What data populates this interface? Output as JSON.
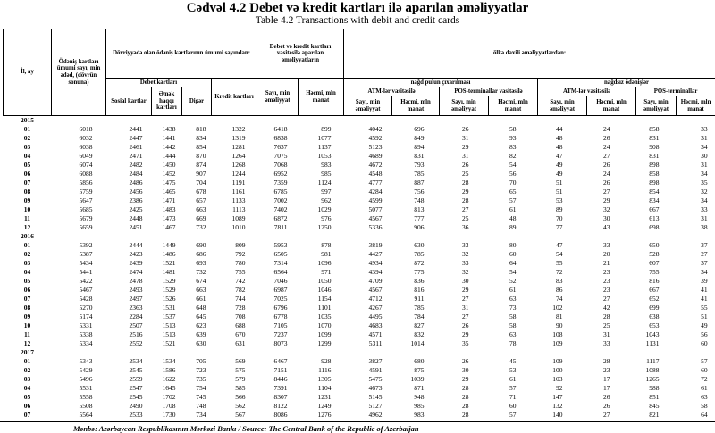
{
  "title": "Cədvəl 4.2 Debet və kredit kartları ilə aparılan əməliyyatlar",
  "subtitle": "Table 4.2 Transactions with debit and credit cards",
  "source": "Mənbə: Azərbaycan Respublikasının Mərkəzi Bankı / Source: The Central Bank of the Republic of Azerbaijan",
  "header": {
    "il_ay": "İl, ay",
    "total_cards": "Ödəniş kartları ümumi sayı, min ədəd, (dövrün sonuna)",
    "circulation": "Dövriyyədə olan ödəniş kartlarının ümumi sayından:",
    "debit_cards": "Debet kartları",
    "social_cards": "Sosial kartlar",
    "salary_cards": "Əmək haqqı kartları",
    "other": "Digər",
    "credit_cards": "Kredit kartları",
    "dc_operations": "Debet və kredit  kartları vasitəsilə aparılan əməliyyatların",
    "count": "Sayı, min əməliyyat",
    "volume": "Həcmi, mln manat",
    "domestic": "ölkə daxili əməliyyatlardan:",
    "cash_withdrawal": "nağd pulun çıxarılması",
    "cashless_payments": "nağdsız ödənişlər",
    "via_atm": "ATM-lər vasitəsilə",
    "via_pos": "POS-terminallar vasitəsilə",
    "pos_terminals": "POS-terminallar"
  },
  "chart_data": {
    "type": "table",
    "title": "Cədvəl 4.2 Debet və kredit kartları ilə aparılan əməliyyatlar / Table 4.2 Transactions with debit and credit cards",
    "columns": [
      "İl, ay",
      "Ödəniş kartları ümumi sayı",
      "Sosial kartlar",
      "Əmək haqqı kartları",
      "Digər",
      "Kredit kartları",
      "Əməliyyat sayı",
      "Həcmi mln manat",
      "Nağd ATM sayı",
      "Nağd ATM həcmi",
      "Nağd POS sayı",
      "Nağd POS həcmi",
      "Nağdsız ATM sayı",
      "Nağdsız ATM həcmi",
      "Nağdsız POS sayı",
      "Nağdsız POS həcmi"
    ]
  },
  "sections": [
    {
      "year": "2015",
      "rows": [
        {
          "month": "01",
          "values": [
            6018,
            2441,
            1438,
            818,
            1322,
            6418,
            899,
            4042,
            696,
            26,
            58,
            44,
            24,
            858,
            33
          ]
        },
        {
          "month": "02",
          "values": [
            6032,
            2447,
            1441,
            834,
            1319,
            6838,
            1077,
            4592,
            849,
            31,
            93,
            48,
            26,
            831,
            31
          ]
        },
        {
          "month": "03",
          "values": [
            6038,
            2461,
            1442,
            854,
            1281,
            7637,
            1137,
            5123,
            894,
            29,
            83,
            48,
            24,
            908,
            34
          ]
        },
        {
          "month": "04",
          "values": [
            6049,
            2471,
            1444,
            870,
            1264,
            7075,
            1053,
            4689,
            831,
            31,
            82,
            47,
            27,
            831,
            30
          ]
        },
        {
          "month": "05",
          "values": [
            6074,
            2482,
            1450,
            874,
            1268,
            7068,
            983,
            4672,
            793,
            26,
            54,
            49,
            26,
            898,
            31
          ]
        },
        {
          "month": "06",
          "values": [
            6088,
            2484,
            1452,
            907,
            1244,
            6952,
            985,
            4548,
            785,
            25,
            56,
            49,
            24,
            858,
            34
          ]
        },
        {
          "month": "07",
          "values": [
            5856,
            2486,
            1475,
            704,
            1191,
            7359,
            1124,
            4777,
            887,
            28,
            70,
            51,
            26,
            898,
            35
          ]
        },
        {
          "month": "08",
          "values": [
            5759,
            2456,
            1465,
            678,
            1161,
            6785,
            997,
            4284,
            756,
            29,
            65,
            51,
            27,
            854,
            32
          ]
        },
        {
          "month": "09",
          "values": [
            5647,
            2386,
            1471,
            657,
            1133,
            7002,
            962,
            4599,
            748,
            28,
            57,
            53,
            29,
            834,
            34
          ]
        },
        {
          "month": "10",
          "values": [
            5685,
            2425,
            1483,
            663,
            1113,
            7402,
            1029,
            5077,
            813,
            27,
            61,
            89,
            32,
            667,
            33
          ]
        },
        {
          "month": "11",
          "values": [
            5679,
            2448,
            1473,
            669,
            1089,
            6872,
            976,
            4567,
            777,
            25,
            48,
            70,
            30,
            613,
            31
          ]
        },
        {
          "month": "12",
          "values": [
            5659,
            2451,
            1467,
            732,
            1010,
            7811,
            1250,
            5336,
            906,
            36,
            89,
            77,
            43,
            698,
            38
          ]
        }
      ]
    },
    {
      "year": "2016",
      "rows": [
        {
          "month": "01",
          "values": [
            5392,
            2444,
            1449,
            690,
            809,
            5953,
            878,
            3819,
            630,
            33,
            80,
            47,
            33,
            650,
            37
          ]
        },
        {
          "month": "02",
          "values": [
            5387,
            2423,
            1486,
            686,
            792,
            6505,
            981,
            4427,
            785,
            32,
            60,
            54,
            20,
            528,
            27
          ]
        },
        {
          "month": "03",
          "values": [
            5434,
            2439,
            1521,
            693,
            780,
            7314,
            1096,
            4934,
            872,
            33,
            64,
            55,
            21,
            607,
            37
          ]
        },
        {
          "month": "04",
          "values": [
            5441,
            2474,
            1481,
            732,
            755,
            6564,
            971,
            4394,
            775,
            32,
            54,
            72,
            23,
            755,
            34
          ]
        },
        {
          "month": "05",
          "values": [
            5422,
            2478,
            1529,
            674,
            742,
            7046,
            1050,
            4709,
            836,
            30,
            52,
            83,
            23,
            816,
            39
          ]
        },
        {
          "month": "06",
          "values": [
            5467,
            2493,
            1529,
            663,
            782,
            6987,
            1046,
            4567,
            816,
            29,
            61,
            86,
            23,
            667,
            41
          ]
        },
        {
          "month": "07",
          "values": [
            5428,
            2497,
            1526,
            661,
            744,
            7025,
            1154,
            4712,
            911,
            27,
            63,
            74,
            27,
            652,
            41
          ]
        },
        {
          "month": "08",
          "values": [
            5270,
            2363,
            1531,
            648,
            728,
            6796,
            1101,
            4267,
            785,
            31,
            73,
            102,
            42,
            699,
            55
          ]
        },
        {
          "month": "09",
          "values": [
            5174,
            2284,
            1537,
            645,
            708,
            6778,
            1035,
            4495,
            784,
            27,
            58,
            81,
            28,
            638,
            51
          ]
        },
        {
          "month": "10",
          "values": [
            5331,
            2507,
            1513,
            623,
            688,
            7105,
            1070,
            4683,
            827,
            26,
            58,
            90,
            25,
            653,
            49
          ]
        },
        {
          "month": "11",
          "values": [
            5338,
            2516,
            1513,
            639,
            670,
            7237,
            1099,
            4571,
            832,
            29,
            63,
            108,
            31,
            1043,
            56
          ]
        },
        {
          "month": "12",
          "values": [
            5334,
            2552,
            1521,
            630,
            631,
            8073,
            1299,
            5311,
            1014,
            35,
            78,
            109,
            33,
            1131,
            60
          ]
        }
      ]
    },
    {
      "year": "2017",
      "rows": [
        {
          "month": "01",
          "values": [
            5343,
            2534,
            1534,
            705,
            569,
            6467,
            928,
            3827,
            680,
            26,
            45,
            109,
            28,
            1117,
            57
          ]
        },
        {
          "month": "02",
          "values": [
            5429,
            2545,
            1586,
            723,
            575,
            7151,
            1116,
            4591,
            875,
            30,
            53,
            100,
            23,
            1088,
            60
          ]
        },
        {
          "month": "03",
          "values": [
            5496,
            2559,
            1622,
            735,
            579,
            8446,
            1305,
            5475,
            1039,
            29,
            61,
            103,
            17,
            1265,
            72
          ]
        },
        {
          "month": "04",
          "values": [
            5531,
            2547,
            1645,
            754,
            585,
            7391,
            1104,
            4673,
            871,
            28,
            57,
            92,
            17,
            988,
            61
          ]
        },
        {
          "month": "05",
          "values": [
            5558,
            2545,
            1702,
            745,
            566,
            8307,
            1231,
            5145,
            948,
            28,
            71,
            147,
            26,
            851,
            63
          ]
        },
        {
          "month": "06",
          "values": [
            5508,
            2490,
            1708,
            748,
            562,
            8122,
            1249,
            5127,
            985,
            28,
            60,
            132,
            26,
            845,
            58
          ]
        },
        {
          "month": "07",
          "values": [
            5564,
            2533,
            1730,
            734,
            567,
            8086,
            1276,
            4962,
            983,
            28,
            57,
            140,
            27,
            821,
            64
          ]
        }
      ]
    }
  ]
}
